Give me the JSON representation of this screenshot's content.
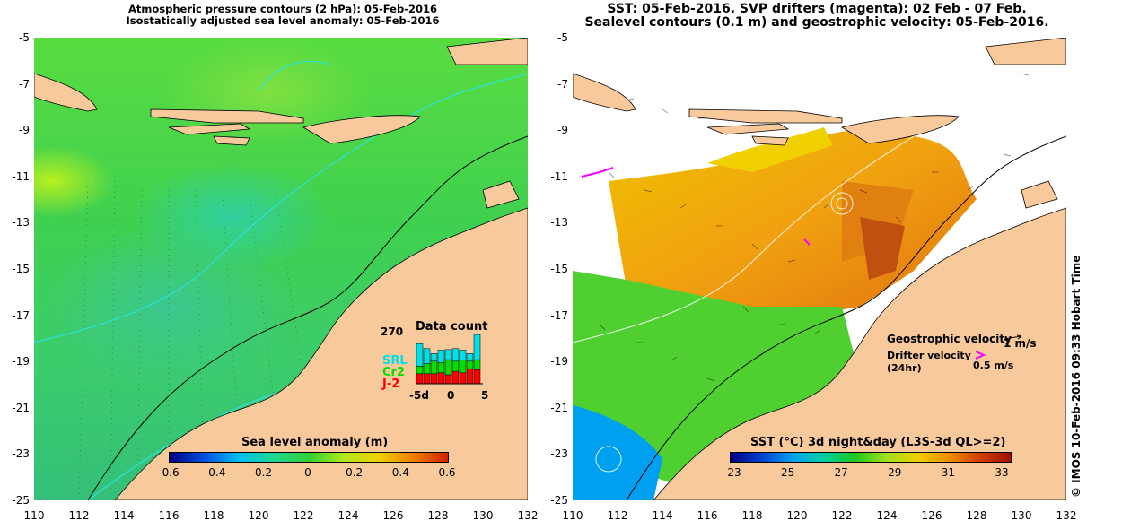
{
  "left_map": {
    "title_line1": "Atmospheric pressure contours (2 hPa): 05-Feb-2016",
    "title_line2": "Isostatically adjusted sea level anomaly: 05-Feb-2016",
    "colorbar": {
      "title": "Sea level anomaly (m)",
      "labels": [
        "-0.6",
        "-0.4",
        "-0.2",
        "0",
        "0.2",
        "0.4",
        "0.6"
      ]
    },
    "data_count": {
      "title": "Data count",
      "max_label": "270",
      "series": [
        "SRL",
        "Cr2",
        "J-2"
      ],
      "series_colors": [
        "#00e0e8",
        "#00e000",
        "#ff0000"
      ],
      "x_labels": [
        "-5d",
        "0",
        "5"
      ],
      "bars": [
        {
          "j2": 0.2,
          "cr2": 0.15,
          "srl": 0.45
        },
        {
          "j2": 0.2,
          "cr2": 0.2,
          "srl": 0.3
        },
        {
          "j2": 0.2,
          "cr2": 0.25,
          "srl": 0.15
        },
        {
          "j2": 0.22,
          "cr2": 0.2,
          "srl": 0.25
        },
        {
          "j2": 0.18,
          "cr2": 0.3,
          "srl": 0.2
        },
        {
          "j2": 0.25,
          "cr2": 0.2,
          "srl": 0.25
        },
        {
          "j2": 0.22,
          "cr2": 0.25,
          "srl": 0.2
        },
        {
          "j2": 0.3,
          "cr2": 0.15,
          "srl": 0.15
        },
        {
          "j2": 0.28,
          "cr2": 0.2,
          "srl": 0.5
        }
      ]
    }
  },
  "right_map": {
    "title_line1": "SST: 05-Feb-2016. SVP drifters (magenta): 02 Feb - 07 Feb.",
    "title_line2": "Sealevel contours (0.1 m) and geostrophic velocity: 05-Feb-2016.",
    "colorbar": {
      "title": "SST (°C) 3d night&day (L3S-3d QL>=2)",
      "labels": [
        "23",
        "25",
        "27",
        "29",
        "31",
        "33"
      ]
    },
    "legend": {
      "geostrophic_label": "Geostrophic velocity",
      "geostrophic_scale": "1 m/s",
      "drifter_label_line1": "Drifter velocity",
      "drifter_label_line2": "(24hr)",
      "drifter_scale": "0.5 m/s"
    }
  },
  "axes": {
    "lat_labels": [
      "-5",
      "-7",
      "-9",
      "-11",
      "-13",
      "-15",
      "-17",
      "-19",
      "-21",
      "-23",
      "-25"
    ],
    "lon_labels": [
      "110",
      "112",
      "114",
      "116",
      "118",
      "120",
      "122",
      "124",
      "126",
      "128",
      "130",
      "132"
    ]
  },
  "credit": "© IMOS 10-Feb-2016 09:33 Hobart Time",
  "colors": {
    "land": "#f8c99b",
    "left_cbar": [
      "#000080",
      "#0050e0",
      "#00c0f0",
      "#20d890",
      "#30d030",
      "#b0e820",
      "#f0d000",
      "#f08000",
      "#d02000"
    ],
    "right_cbar": [
      "#000080",
      "#0040d0",
      "#00a0f0",
      "#00d0a0",
      "#20c820",
      "#a0e020",
      "#f0d000",
      "#f09000",
      "#d04000",
      "#a01000"
    ]
  }
}
